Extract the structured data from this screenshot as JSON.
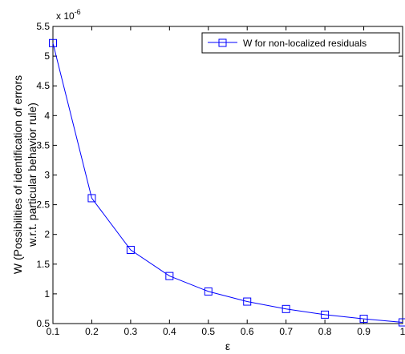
{
  "chart_data": {
    "type": "line",
    "xlabel": "ε",
    "ylabel_line1": "W (Possibilities of identification of errors",
    "ylabel_line2": "w.r.t. particular behavior rule)",
    "y_multiplier_base": "x 10",
    "y_multiplier_exp": "-6",
    "xlim": [
      0.1,
      1
    ],
    "ylim": [
      0.5,
      5.5
    ],
    "x_ticks": [
      0.1,
      0.2,
      0.3,
      0.4,
      0.5,
      0.6,
      0.7,
      0.8,
      0.9,
      1
    ],
    "x_tick_labels": [
      "0.1",
      "0.2",
      "0.3",
      "0.4",
      "0.5",
      "0.6",
      "0.7",
      "0.8",
      "0.9",
      "1"
    ],
    "y_ticks": [
      0.5,
      1,
      1.5,
      2,
      2.5,
      3,
      3.5,
      4,
      4.5,
      5,
      5.5
    ],
    "y_tick_labels": [
      "0.5",
      "1",
      "1.5",
      "2",
      "2.5",
      "3",
      "3.5",
      "4",
      "4.5",
      "5",
      "5.5"
    ],
    "grid": false,
    "legend_position": "top-right",
    "series": [
      {
        "name": "W for non-localized residuals",
        "color": "#0000ff",
        "marker": "square",
        "x": [
          0.1,
          0.2,
          0.3,
          0.4,
          0.5,
          0.6,
          0.7,
          0.8,
          0.9,
          1
        ],
        "y": [
          5.22,
          2.61,
          1.74,
          1.3,
          1.04,
          0.87,
          0.745,
          0.65,
          0.58,
          0.52
        ]
      }
    ]
  }
}
